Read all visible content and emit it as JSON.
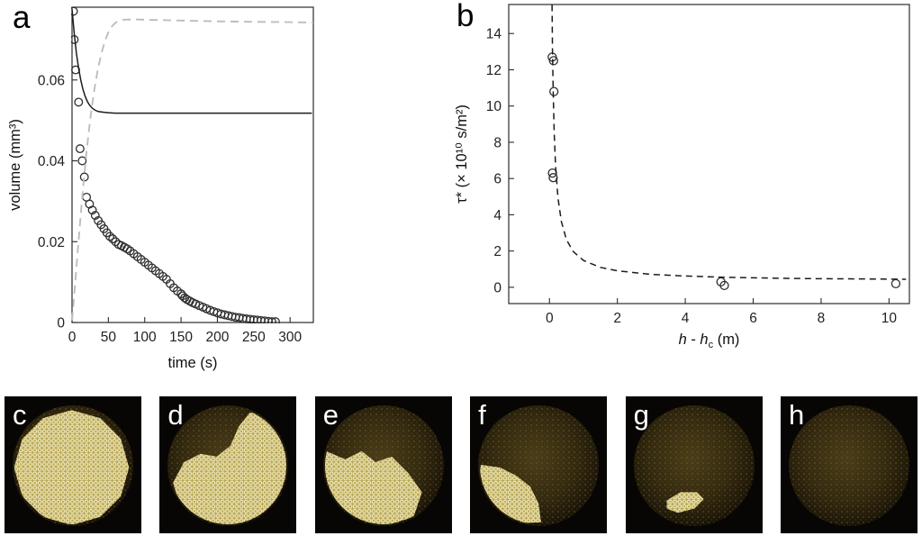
{
  "figure": {
    "panel_a_label": "a",
    "panel_b_label": "b"
  },
  "chart_data": [
    {
      "type": "line+scatter",
      "panel": "a",
      "xlabel": "time (s)",
      "ylabel": "volume (mm³)",
      "xlim": [
        0,
        332
      ],
      "ylim": [
        0,
        0.078
      ],
      "xticks": [
        0,
        50,
        100,
        150,
        200,
        250,
        300
      ],
      "yticks": [
        0,
        0.02,
        0.04,
        0.06
      ],
      "ytick_labels": [
        "0",
        "0.02",
        "0.04",
        "0.06"
      ],
      "grid": false,
      "legend": "none",
      "series": [
        {
          "name": "measured-raft-volume-open-circles",
          "style": "scatter-open-circle",
          "x": [
            2,
            3,
            5,
            9,
            11,
            14,
            17,
            20,
            24,
            28,
            32,
            36,
            40,
            44,
            48,
            52,
            56,
            60,
            64,
            68,
            72,
            76,
            80,
            85,
            90,
            95,
            100,
            105,
            110,
            115,
            120,
            125,
            130,
            135,
            140,
            145,
            150,
            152,
            155,
            158,
            162,
            166,
            170,
            175,
            180,
            185,
            190,
            195,
            200,
            205,
            210,
            215,
            220,
            225,
            230,
            235,
            240,
            245,
            250,
            255,
            260,
            265,
            270,
            275,
            280
          ],
          "y": [
            0.077,
            0.07,
            0.0625,
            0.0545,
            0.043,
            0.04,
            0.036,
            0.031,
            0.0293,
            0.0278,
            0.0265,
            0.0252,
            0.0242,
            0.0232,
            0.0222,
            0.0213,
            0.0207,
            0.02,
            0.0193,
            0.019,
            0.0186,
            0.0182,
            0.0177,
            0.017,
            0.0163,
            0.0156,
            0.0149,
            0.0142,
            0.0135,
            0.0128,
            0.0121,
            0.0114,
            0.0107,
            0.0096,
            0.0086,
            0.0078,
            0.0071,
            0.0066,
            0.0061,
            0.0057,
            0.0053,
            0.0049,
            0.0046,
            0.0042,
            0.0038,
            0.0034,
            0.003,
            0.0027,
            0.0024,
            0.0021,
            0.0019,
            0.0017,
            0.0015,
            0.0013,
            0.0012,
            0.001,
            0.0009,
            0.0008,
            0.0007,
            0.0006,
            0.0005,
            0.0004,
            0.0003,
            0.0002,
            0.0002
          ]
        },
        {
          "name": "model-solid-line",
          "style": "line-solid",
          "x": [
            0,
            3,
            6,
            9,
            12,
            15,
            18,
            21,
            24,
            28,
            32,
            36,
            40,
            45,
            50,
            60,
            80,
            120,
            200,
            330
          ],
          "y": [
            0.0775,
            0.0716,
            0.0667,
            0.0629,
            0.06,
            0.0577,
            0.056,
            0.0547,
            0.0538,
            0.053,
            0.0525,
            0.0522,
            0.0521,
            0.052,
            0.0519,
            0.0518,
            0.0518,
            0.0518,
            0.0518,
            0.0518
          ]
        },
        {
          "name": "model-dashed-gray-line",
          "style": "line-dashed-gray",
          "x": [
            0,
            4,
            8,
            12,
            16,
            20,
            25,
            30,
            35,
            40,
            45,
            50,
            55,
            60,
            70,
            85,
            100,
            150,
            200,
            250,
            300,
            332
          ],
          "y": [
            0.0005,
            0.009,
            0.018,
            0.0268,
            0.0348,
            0.0422,
            0.0503,
            0.0568,
            0.0622,
            0.0663,
            0.0695,
            0.0718,
            0.0733,
            0.0742,
            0.0749,
            0.075,
            0.0749,
            0.0747,
            0.0745,
            0.0744,
            0.0743,
            0.0742
          ]
        }
      ]
    },
    {
      "type": "line+scatter",
      "panel": "b",
      "xlabel": "h - hc (m)",
      "xlabel_parts": [
        {
          "t": "h",
          "i": 1
        },
        {
          "t": " - "
        },
        {
          "t": "h",
          "i": 1
        },
        {
          "t": "c",
          "dy": 4,
          "size": 11
        },
        {
          "t": " (m)",
          "dy": -4
        }
      ],
      "ylabel": "τ* (× 10¹⁰ s/m²)",
      "xlim": [
        -1.2,
        10.6
      ],
      "ylim": [
        -0.9,
        15.6
      ],
      "xticks": [
        0,
        2,
        4,
        6,
        8,
        10
      ],
      "yticks": [
        0,
        2,
        4,
        6,
        8,
        10,
        12,
        14
      ],
      "grid": false,
      "legend": "none",
      "series": [
        {
          "name": "tau-star-data-open-circles",
          "style": "scatter-open-circle",
          "x": [
            0.08,
            0.12,
            0.13,
            0.09,
            0.11,
            5.05,
            5.15,
            10.2
          ],
          "y": [
            12.7,
            12.5,
            10.8,
            6.3,
            6.05,
            0.3,
            0.1,
            0.2
          ]
        },
        {
          "name": "fit-dashed-line",
          "style": "line-dashed",
          "x": [
            0.05,
            0.06,
            0.075,
            0.09,
            0.11,
            0.14,
            0.18,
            0.25,
            0.35,
            0.5,
            0.7,
            1.0,
            1.5,
            2,
            3,
            4,
            5,
            6,
            7,
            8,
            9,
            10.5
          ],
          "y": [
            23.33,
            19.5,
            15.66,
            13.11,
            10.78,
            8.54,
            6.72,
            4.93,
            3.62,
            2.63,
            1.97,
            1.48,
            1.1,
            0.91,
            0.71,
            0.62,
            0.56,
            0.52,
            0.49,
            0.47,
            0.46,
            0.44
          ]
        }
      ]
    }
  ],
  "photos": {
    "panels": [
      {
        "label": "c",
        "bright_polygon": [
          [
            91,
            52
          ],
          [
            85,
            73
          ],
          [
            70,
            88
          ],
          [
            49,
            94
          ],
          [
            28,
            88
          ],
          [
            13,
            73
          ],
          [
            7,
            52
          ],
          [
            13,
            31
          ],
          [
            28,
            16
          ],
          [
            49,
            10
          ],
          [
            70,
            16
          ],
          [
            85,
            31
          ]
        ]
      },
      {
        "label": "d",
        "bright_polygon": [
          [
            10,
            63
          ],
          [
            18,
            48
          ],
          [
            30,
            42
          ],
          [
            42,
            44
          ],
          [
            52,
            36
          ],
          [
            58,
            22
          ],
          [
            66,
            12
          ],
          [
            80,
            12
          ],
          [
            92,
            30
          ],
          [
            94,
            55
          ],
          [
            86,
            78
          ],
          [
            62,
            95
          ],
          [
            35,
            93
          ],
          [
            15,
            80
          ]
        ]
      },
      {
        "label": "e",
        "bright_polygon": [
          [
            8,
            40
          ],
          [
            22,
            46
          ],
          [
            34,
            40
          ],
          [
            44,
            48
          ],
          [
            56,
            44
          ],
          [
            68,
            56
          ],
          [
            78,
            70
          ],
          [
            72,
            88
          ],
          [
            50,
            95
          ],
          [
            28,
            90
          ],
          [
            11,
            72
          ],
          [
            6,
            55
          ]
        ]
      },
      {
        "label": "f",
        "bright_polygon": [
          [
            8,
            50
          ],
          [
            22,
            52
          ],
          [
            34,
            58
          ],
          [
            44,
            66
          ],
          [
            50,
            78
          ],
          [
            52,
            92
          ],
          [
            30,
            93
          ],
          [
            13,
            80
          ],
          [
            6,
            62
          ]
        ]
      },
      {
        "label": "g",
        "bright_polygon": [
          [
            30,
            76
          ],
          [
            40,
            70
          ],
          [
            52,
            70
          ],
          [
            57,
            75
          ],
          [
            50,
            82
          ],
          [
            38,
            85
          ],
          [
            30,
            82
          ]
        ]
      },
      {
        "label": "h",
        "bright_polygon": []
      }
    ]
  }
}
